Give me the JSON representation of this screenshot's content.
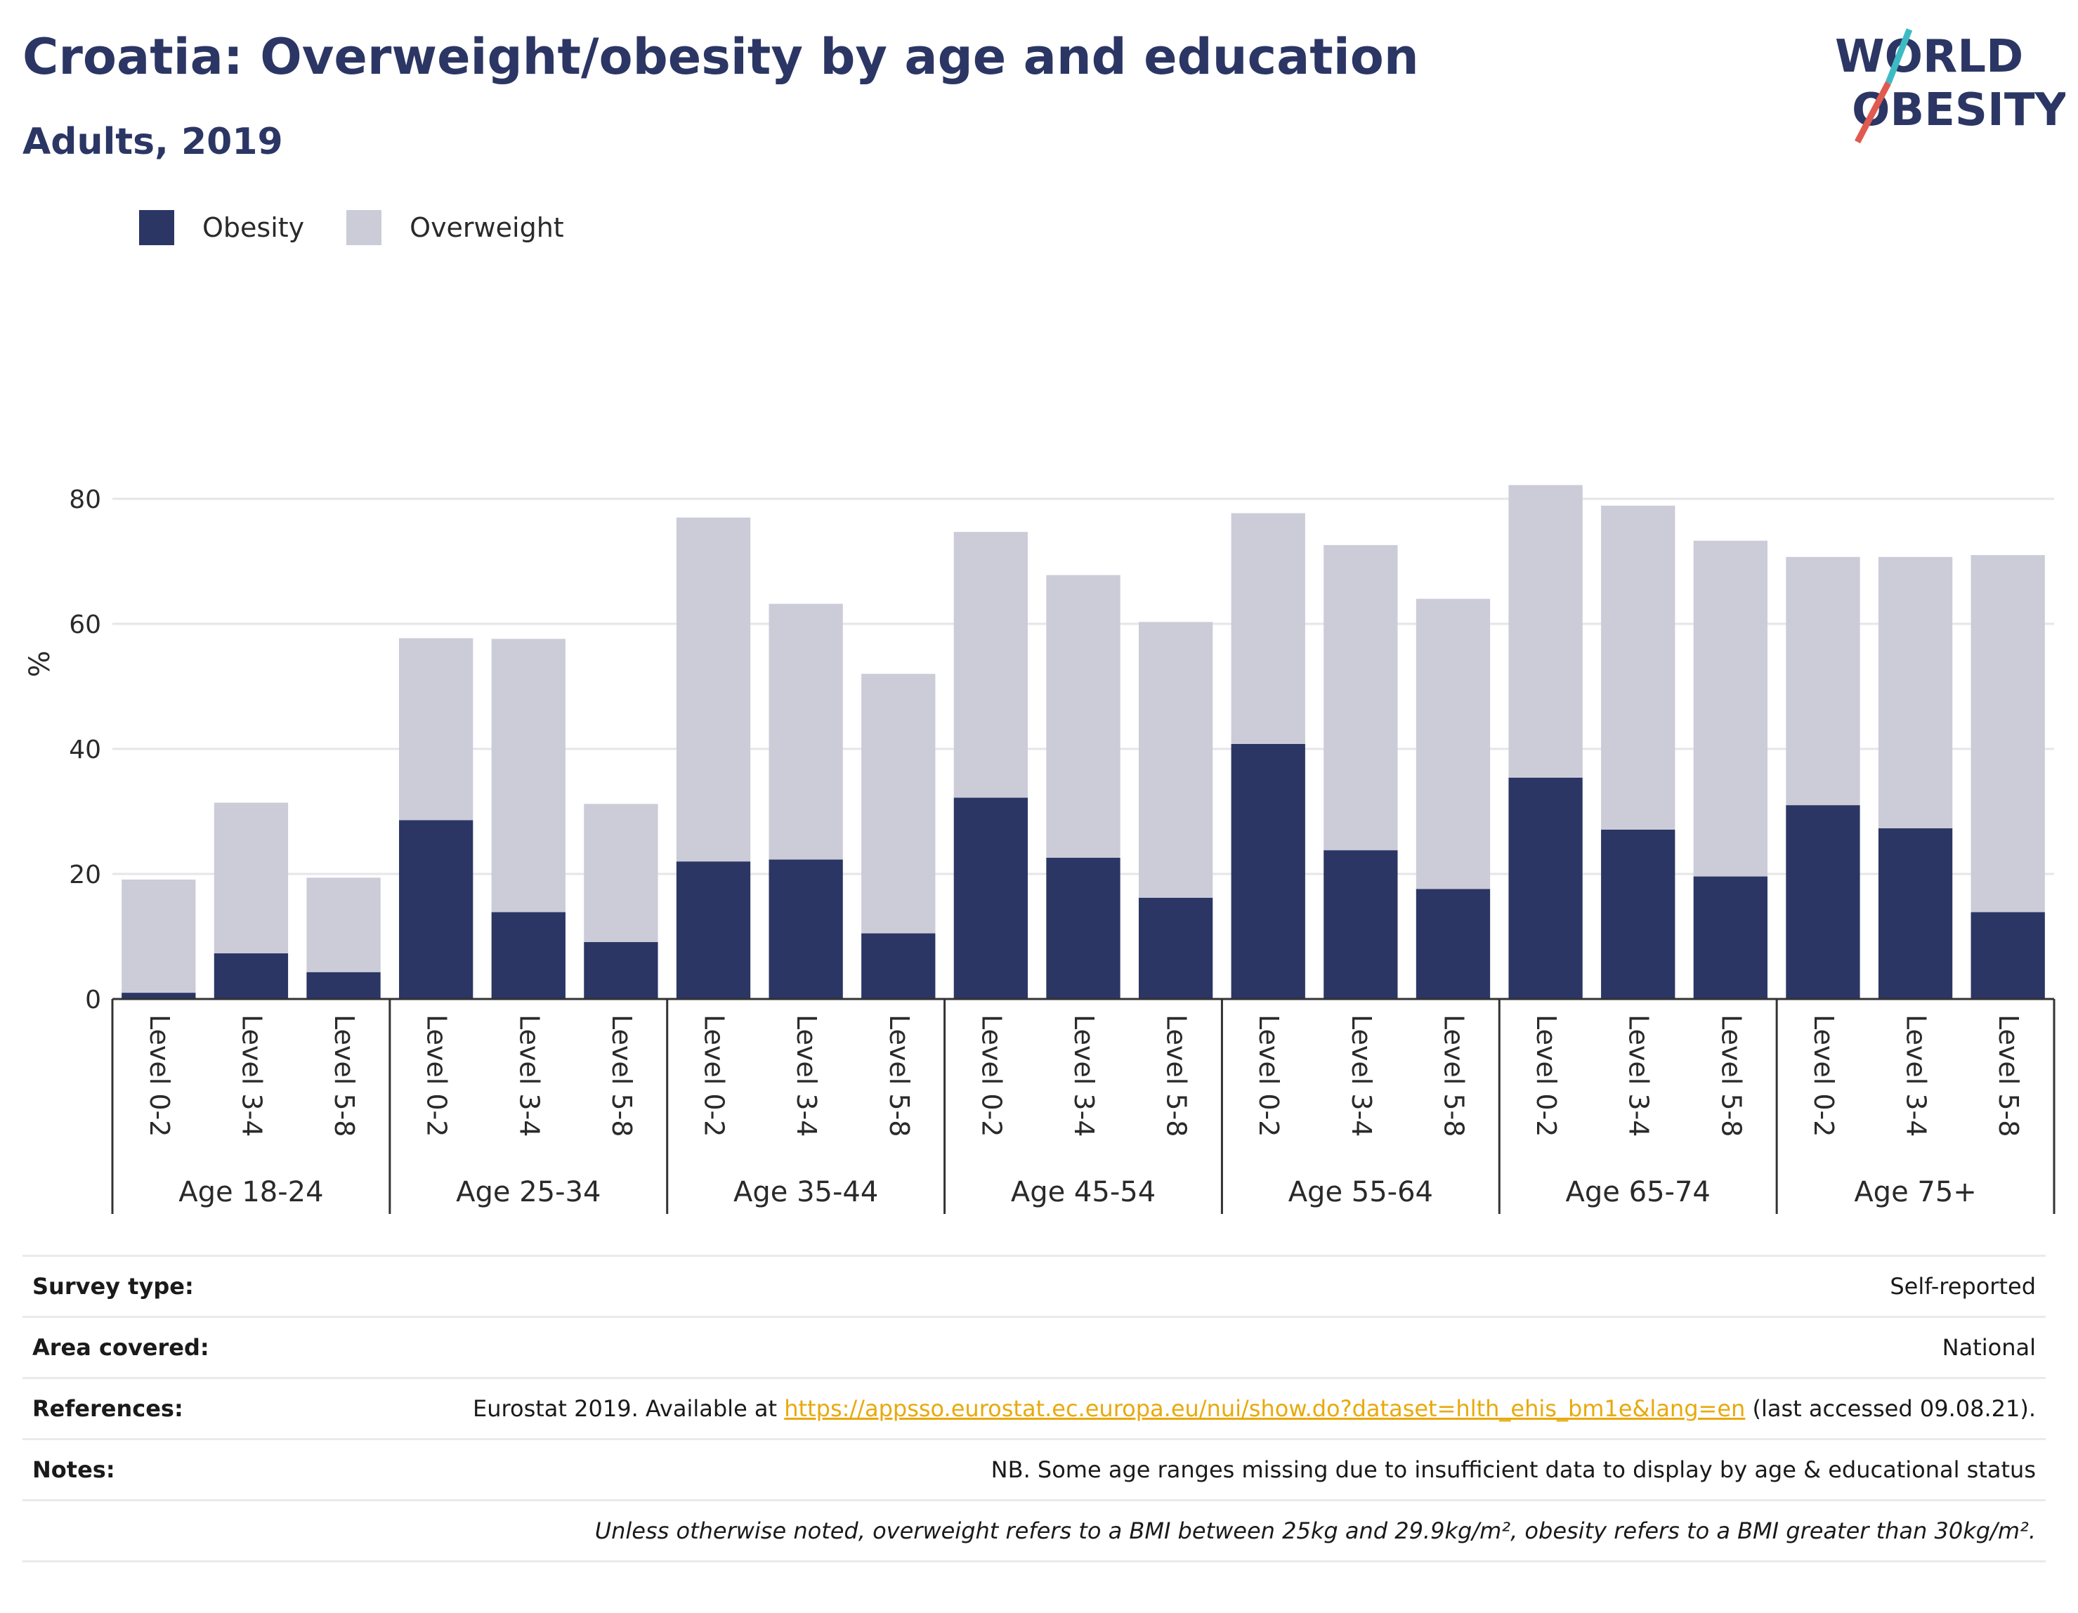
{
  "header": {
    "title": "Croatia: Overweight/obesity by age and education",
    "subtitle": "Adults, 2019"
  },
  "logo": {
    "line1": "WORLD",
    "line2": "OBESITY"
  },
  "colors": {
    "obesity": "#2b3664",
    "overweight": "#cbccd8",
    "grid": "#e6e6ea",
    "axis": "#333333",
    "accent_teal": "#3dbbc4",
    "accent_red": "#e05a4f"
  },
  "legend": {
    "obesity": "Obesity",
    "overweight": "Overweight"
  },
  "chart_data": {
    "type": "bar",
    "stacked": true,
    "ylabel": "%",
    "ylim": [
      0,
      90
    ],
    "yticks": [
      0,
      20,
      40,
      60,
      80
    ],
    "grid": true,
    "legend_position": "top-left",
    "groups": [
      "Age 18-24",
      "Age 25-34",
      "Age 35-44",
      "Age 45-54",
      "Age 55-64",
      "Age 65-74",
      "Age 75+"
    ],
    "subcategories": [
      "Level 0-2",
      "Level 3-4",
      "Level 5-8"
    ],
    "series": [
      {
        "name": "Obesity",
        "values": [
          1,
          7.3,
          4.3,
          28.6,
          13.9,
          9.1,
          22,
          22.3,
          10.5,
          32.2,
          22.6,
          16.2,
          40.8,
          23.8,
          17.6,
          35.4,
          27.1,
          19.6,
          31,
          27.3,
          13.9
        ]
      },
      {
        "name": "Overweight",
        "values": [
          18.1,
          24.1,
          15.1,
          29.1,
          43.7,
          22.1,
          55,
          40.9,
          41.5,
          42.5,
          45.2,
          44.1,
          36.9,
          48.8,
          46.4,
          46.8,
          51.8,
          53.7,
          39.7,
          43.4,
          57.1
        ]
      }
    ]
  },
  "meta": {
    "survey_type": {
      "label": "Survey type:",
      "value": "Self-reported"
    },
    "area": {
      "label": "Area covered:",
      "value": "National"
    },
    "references": {
      "label": "References:",
      "prefix": "Eurostat 2019. Available at ",
      "link": "https://appsso.eurostat.ec.europa.eu/nui/show.do?dataset=hlth_ehis_bm1e&lang=en",
      "suffix": " (last accessed 09.08.21)."
    },
    "notes": {
      "label": "Notes:",
      "value": "NB. Some age ranges missing due to insufficient data to display by age & educational status"
    },
    "footnote": "Unless otherwise noted, overweight refers to a BMI between 25kg and 29.9kg/m², obesity refers to a BMI greater than 30kg/m²."
  }
}
